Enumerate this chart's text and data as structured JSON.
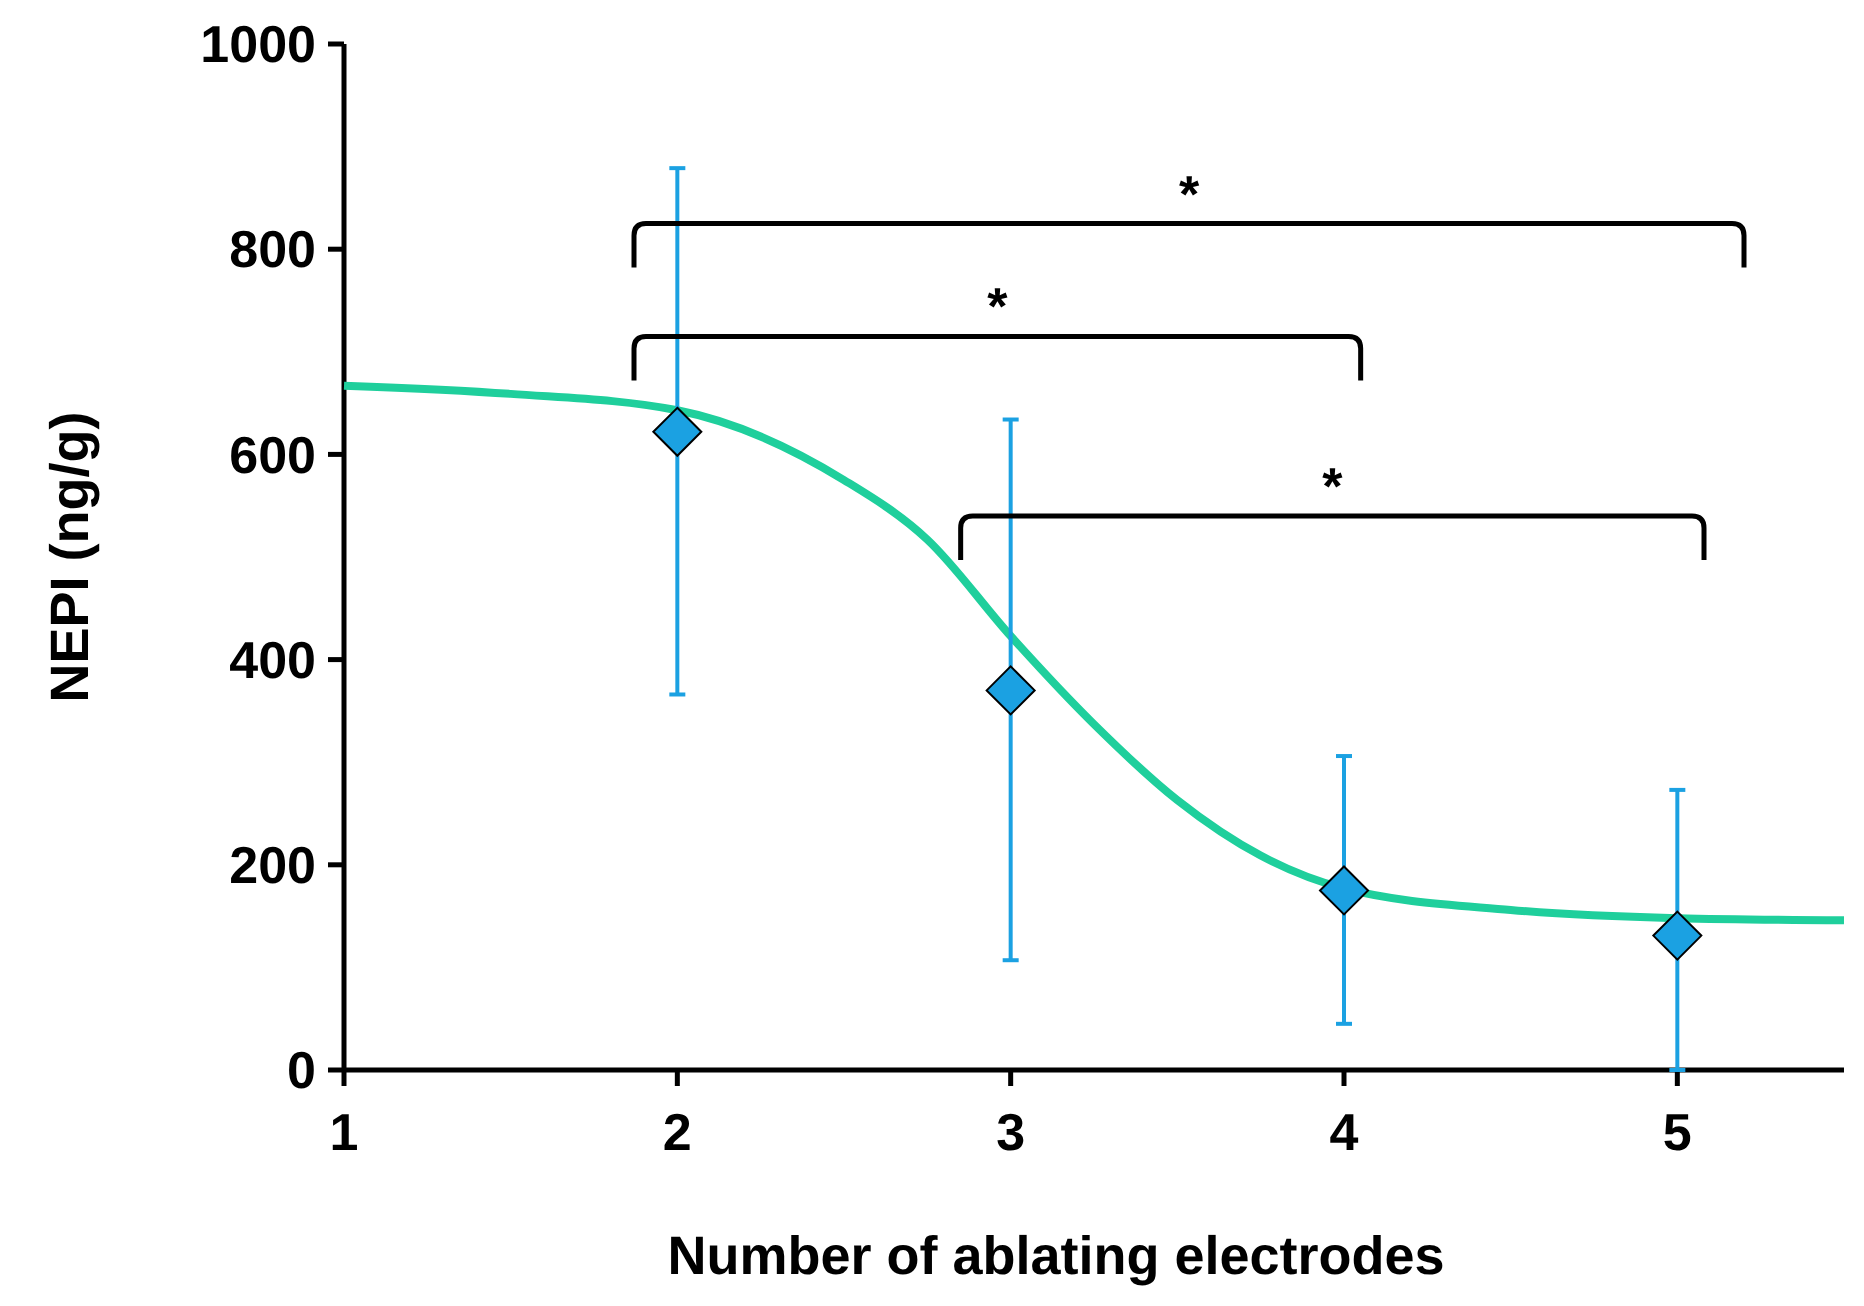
{
  "chart_data": {
    "type": "scatter",
    "xlabel": "Number of ablating electrodes",
    "ylabel": "NEPI (ng/g)",
    "xlim": [
      1,
      5.5
    ],
    "xticks": [
      1,
      2,
      3,
      4,
      5
    ],
    "ylim": [
      0,
      1000
    ],
    "yticks": [
      0,
      200,
      400,
      600,
      800,
      1000
    ],
    "grid": false,
    "marker": "diamond",
    "series": [
      {
        "type": "line",
        "color": "#1fcf9c",
        "marker": "none",
        "line_style": "solid",
        "x": [
          1,
          1.5,
          2,
          2.5,
          2.75,
          3,
          3.25,
          3.5,
          3.75,
          4,
          4.5,
          5,
          5.5
        ],
        "values": [
          667,
          659,
          643,
          575,
          517,
          423,
          337,
          263,
          209,
          177,
          156,
          148,
          146
        ]
      },
      {
        "type": "scatter",
        "color": "#1ba1e2",
        "x": [
          2,
          3,
          4,
          5
        ],
        "values": [
          622,
          370,
          175,
          131
        ],
        "errors": [
          [
            366,
            879
          ],
          [
            107,
            634
          ],
          [
            45,
            306
          ],
          [
            0,
            273
          ]
        ]
      }
    ],
    "annotations": [
      "*",
      "*",
      "*"
    ]
  }
}
